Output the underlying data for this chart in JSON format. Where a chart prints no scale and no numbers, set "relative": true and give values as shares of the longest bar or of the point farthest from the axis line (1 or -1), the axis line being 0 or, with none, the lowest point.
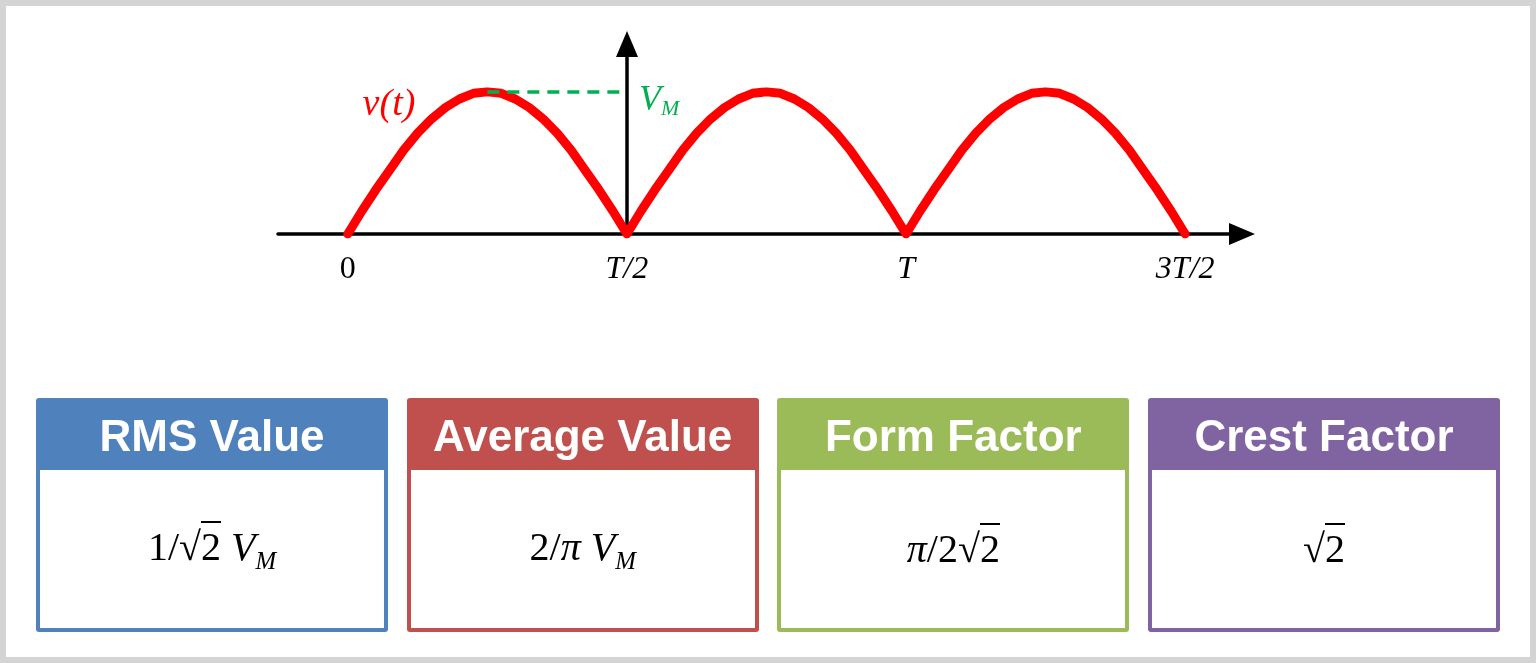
{
  "chart_data": [
    {
      "type": "line",
      "relative": true,
      "categories": [
        null,
        null,
        null,
        null,
        null,
        "0",
        null,
        null,
        null,
        null,
        null,
        null,
        null,
        null,
        null,
        null,
        null,
        null,
        null,
        null,
        null,
        null,
        null,
        null,
        null,
        "T/2",
        null,
        null,
        null,
        null,
        null,
        null,
        null,
        null,
        null,
        null,
        null,
        null,
        null,
        null,
        null,
        null,
        null,
        null,
        null,
        "T",
        null,
        null,
        null,
        null,
        null,
        null,
        null,
        null,
        null,
        null,
        null,
        null,
        null,
        null,
        null,
        null,
        null,
        null,
        null,
        "3T/2",
        null,
        null,
        null,
        null
      ],
      "series": [
        {
          "name": "v(t)",
          "color": "#ff0000",
          "values": [
            null,
            null,
            null,
            null,
            null,
            0,
            0.16,
            0.31,
            0.45,
            0.59,
            0.71,
            0.81,
            0.89,
            0.95,
            0.99,
            1,
            0.99,
            0.95,
            0.89,
            0.81,
            0.71,
            0.59,
            0.45,
            0.31,
            0.16,
            0,
            0.16,
            0.31,
            0.45,
            0.59,
            0.71,
            0.81,
            0.89,
            0.95,
            0.99,
            1,
            0.99,
            0.95,
            0.89,
            0.81,
            0.71,
            0.59,
            0.45,
            0.31,
            0.16,
            0,
            0.16,
            0.31,
            0.45,
            0.59,
            0.71,
            0.81,
            0.89,
            0.95,
            0.99,
            1,
            0.99,
            0.95,
            0.89,
            0.81,
            0.71,
            0.59,
            0.45,
            0.31,
            0.16,
            0,
            null,
            null,
            null,
            null
          ]
        },
        {
          "name": "V$_{M}$",
          "color": "#00b050",
          "line_style": "dashed",
          "values": [
            null,
            null,
            null,
            null,
            null,
            null,
            null,
            null,
            null,
            null,
            null,
            null,
            null,
            null,
            null,
            1,
            1,
            1,
            1,
            1,
            1,
            1,
            1,
            1,
            1,
            1,
            null,
            null,
            null,
            null,
            null,
            null,
            null,
            null,
            null,
            null,
            null,
            null,
            null,
            null,
            null,
            null,
            null,
            null,
            null,
            null,
            null,
            null,
            null,
            null,
            null,
            null,
            null,
            null,
            null,
            null,
            null,
            null,
            null,
            null,
            null,
            null,
            null,
            null,
            null,
            null,
            null,
            null,
            null,
            null
          ]
        }
      ]
    },
    {
      "type": "other",
      "title": "RMS Value",
      "color": "#4f81bd",
      "annotations": [
        "1/√2 V$_{M}$"
      ]
    },
    {
      "type": "other",
      "title": "Average Value",
      "color": "#c0504d",
      "annotations": [
        "2/π V$_{M}$"
      ]
    },
    {
      "type": "other",
      "title": "Form Factor",
      "color": "#9bbb59",
      "annotations": [
        "π/2√2"
      ]
    },
    {
      "type": "other",
      "title": "Crest Factor",
      "color": "#8064a2",
      "annotations": [
        "√2"
      ]
    }
  ]
}
